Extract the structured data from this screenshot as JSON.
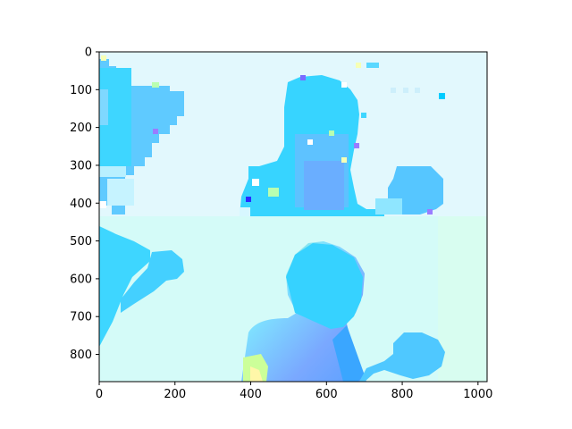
{
  "chart_data": {
    "type": "heatmap",
    "title": "",
    "xlabel": "",
    "ylabel": "",
    "xlim": [
      0,
      1024
    ],
    "ylim": [
      872,
      0
    ],
    "x_ticks": [
      0,
      200,
      400,
      600,
      800,
      1000
    ],
    "y_ticks": [
      0,
      100,
      200,
      300,
      400,
      500,
      600,
      700,
      800
    ],
    "grid": false,
    "colors": {
      "background_upper": "#e2f8fd",
      "background_lower": "#d4fbf8",
      "region_cyan": "#36d6ff",
      "region_light_blue": "#5ac8ff",
      "region_blue": "#6aaeff",
      "accent_green": "#b9ffb0",
      "accent_purple": "#9a7cff",
      "accent_yellow": "#f6ffb5"
    }
  }
}
